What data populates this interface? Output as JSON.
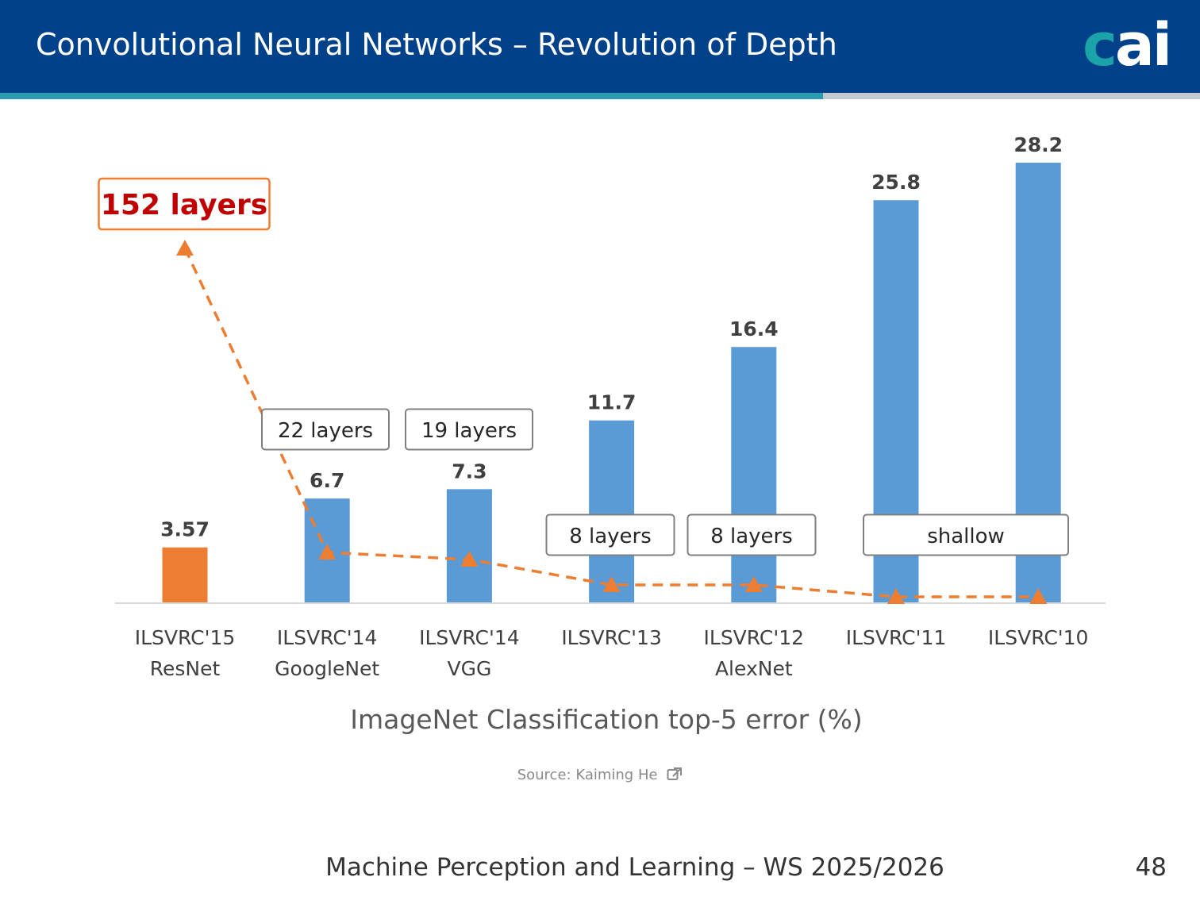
{
  "slide": {
    "title": "Convolutional Neural Networks – Revolution of Depth",
    "logo": {
      "c": "c",
      "ai": "ai"
    },
    "source_label": "Source:",
    "source_name": "Kaiming He",
    "footer": "Machine Perception and Learning – WS 2025/2026",
    "page_number": "48"
  },
  "colors": {
    "header": "#00418a",
    "accent_teal": "#2a9bb0",
    "resnet_bar": "#ed7d31",
    "bar": "#5b9bd5",
    "trend": "#ed7d31"
  },
  "chart_data": {
    "type": "bar",
    "title": "ImageNet Classification top-5 error (%)",
    "categories": [
      [
        "ILSVRC'15",
        "ResNet"
      ],
      [
        "ILSVRC'14",
        "GoogleNet"
      ],
      [
        "ILSVRC'14",
        "VGG"
      ],
      [
        "ILSVRC'13",
        ""
      ],
      [
        "ILSVRC'12",
        "AlexNet"
      ],
      [
        "ILSVRC'11",
        ""
      ],
      [
        "ILSVRC'10",
        ""
      ]
    ],
    "values": [
      3.57,
      6.7,
      7.3,
      11.7,
      16.4,
      25.8,
      28.2
    ],
    "value_labels": [
      "3.57",
      "6.7",
      "7.3",
      "11.7",
      "16.4",
      "25.8",
      "28.2"
    ],
    "ylim": [
      0,
      28.2
    ],
    "depth_series": {
      "name": "layers",
      "values": [
        152,
        22,
        19,
        8,
        8,
        1,
        1
      ]
    },
    "depth_labels": [
      "152 layers",
      "22 layers",
      "19 layers",
      "8 layers",
      "8 layers",
      "shallow"
    ]
  }
}
